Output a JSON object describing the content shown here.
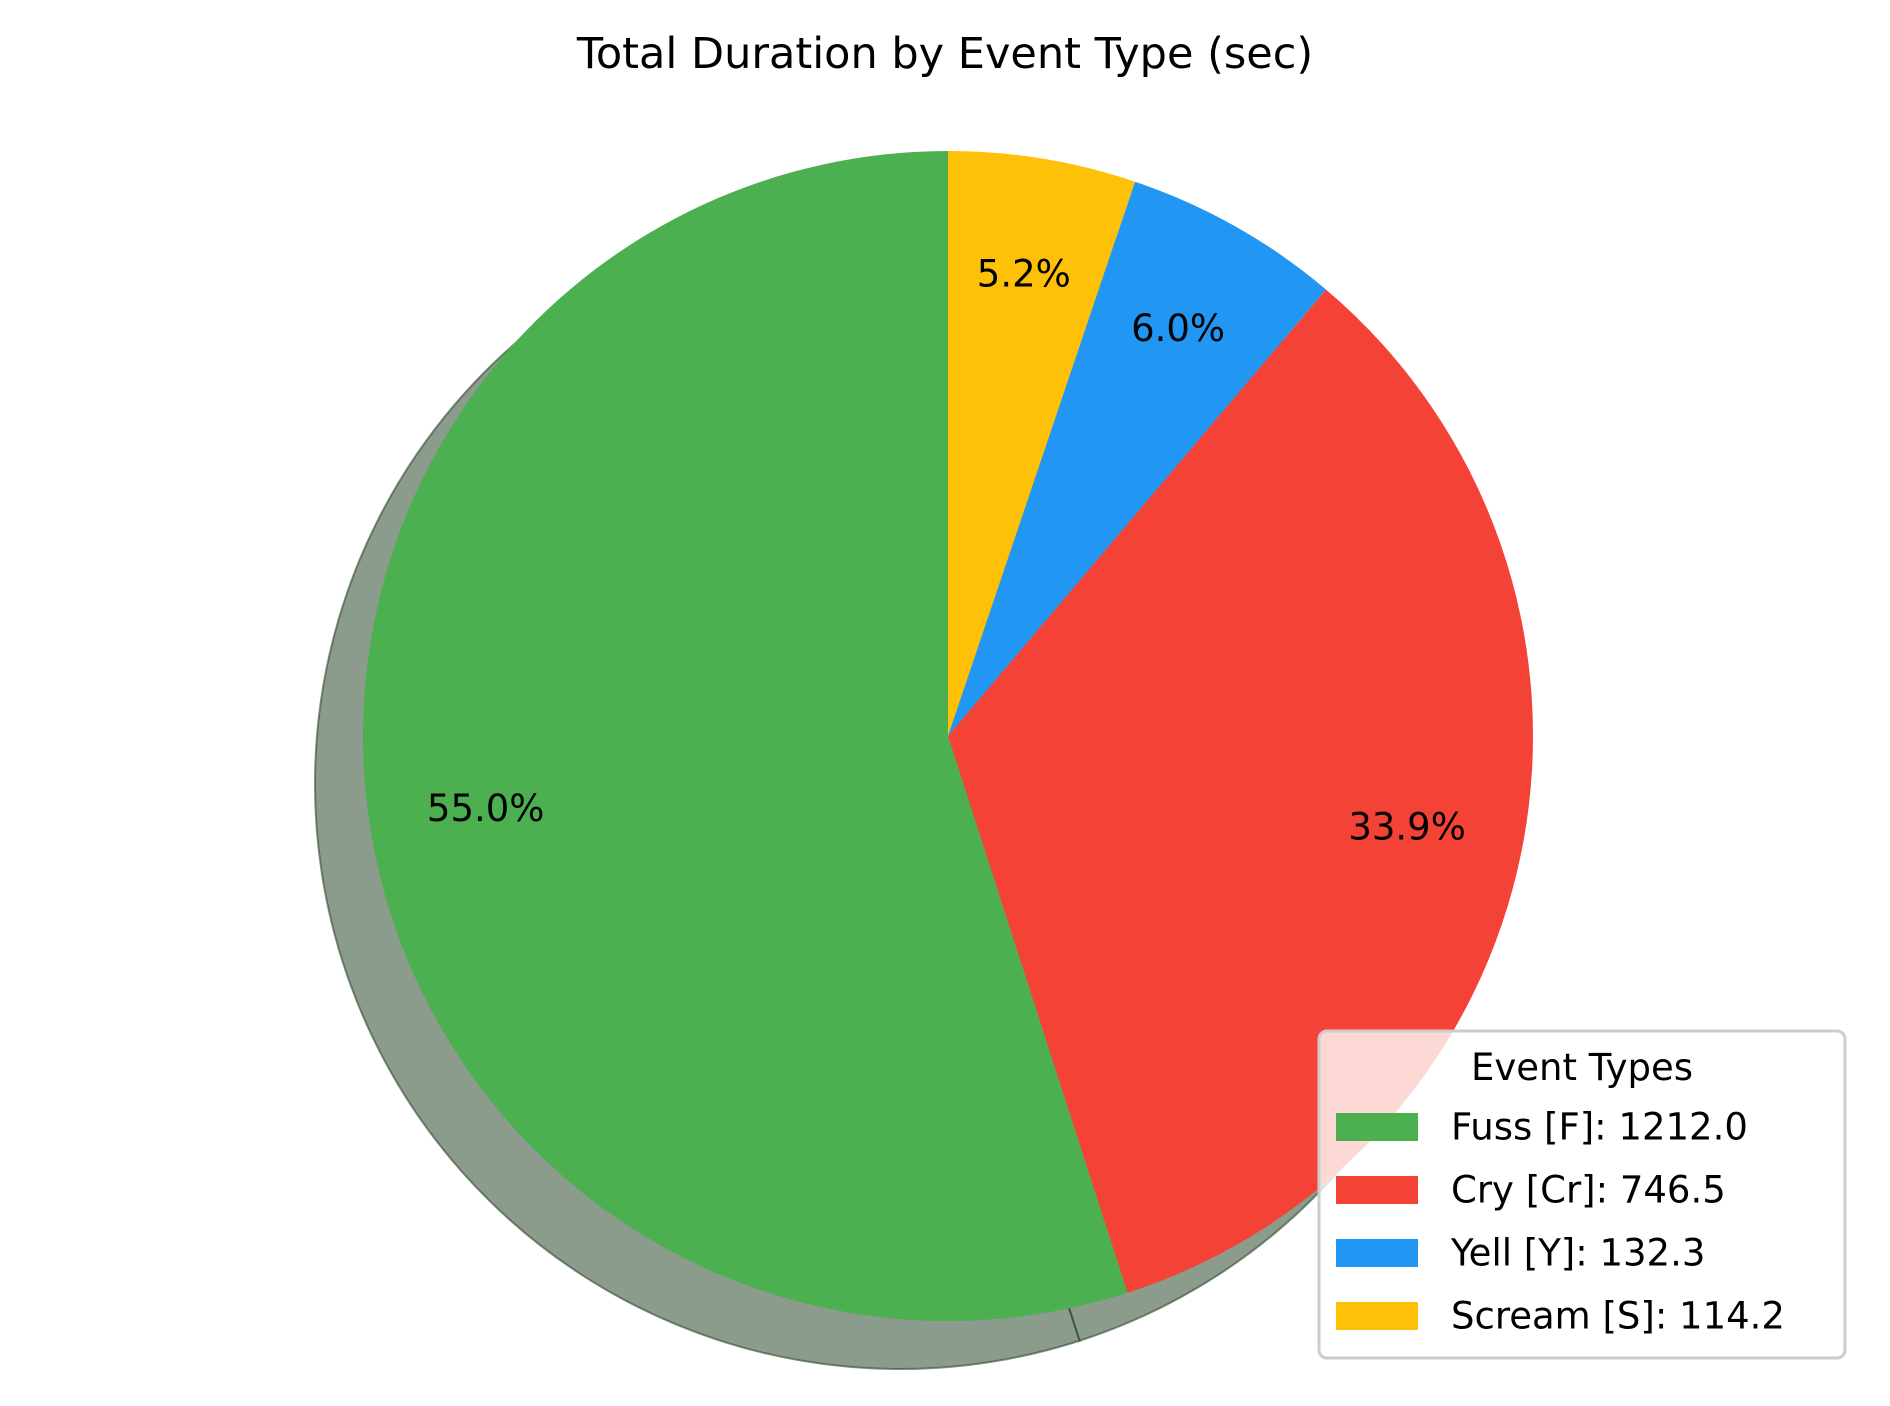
{
  "chart_data": {
    "type": "pie",
    "title": "Total Duration by Event Type (sec)",
    "categories": [
      "Fuss [F]",
      "Cry [Cr]",
      "Yell [Y]",
      "Scream [S]"
    ],
    "values": [
      1212.0,
      746.5,
      132.3,
      114.2
    ],
    "percent_labels": [
      "55.0%",
      "33.9%",
      "6.0%",
      "5.2%"
    ],
    "colors": [
      "#4caf50",
      "#f44336",
      "#2196f3",
      "#ffc107"
    ],
    "start_angle_deg": 90,
    "direction": "counterclockwise",
    "shadow": true,
    "legend": {
      "title": "Event Types",
      "placement": "lower-right",
      "entries": [
        "Fuss [F]: 1212.0",
        "Cry [Cr]: 746.5",
        "Yell [Y]: 132.3",
        "Scream [S]: 114.2"
      ]
    }
  }
}
